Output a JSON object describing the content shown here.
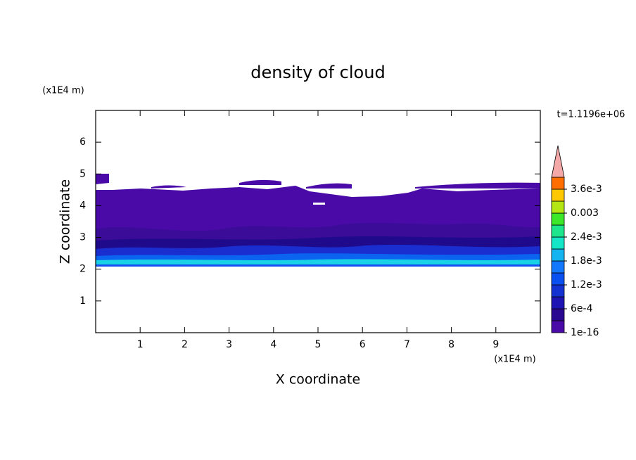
{
  "chart_data": {
    "type": "contour",
    "title": "density of cloud",
    "x_label": "X coordinate",
    "y_label": "Z coordinate",
    "x_unit": "(x1E4 m)",
    "y_unit": "(x1E4 m)",
    "time_label": "t=1.1196e+06",
    "xlim": [
      0,
      10
    ],
    "ylim": [
      0,
      7
    ],
    "xticks": [
      1,
      2,
      3,
      4,
      5,
      6,
      7,
      8,
      9
    ],
    "yticks": [
      1,
      2,
      3,
      4,
      5,
      6
    ],
    "colorbar": {
      "lim": [
        1e-16,
        0.0039
      ],
      "levels": [
        1e-16,
        0.0003,
        0.0006,
        0.0009,
        0.0012,
        0.0015,
        0.0018,
        0.0021,
        0.0024,
        0.0027,
        0.003,
        0.0033,
        0.0036
      ],
      "colors": [
        "#4a0aa8",
        "#2a0890",
        "#1e14b4",
        "#1432d2",
        "#0a50f0",
        "#1478ff",
        "#14b4f0",
        "#14e6c8",
        "#1ee68c",
        "#3ce628",
        "#b4e614",
        "#ffc800",
        "#ff6e00"
      ],
      "extend_color": "#f4a8a8",
      "ticks": [
        1e-16,
        {
          "value": 0.0006,
          "label": "6e-4"
        },
        {
          "value": 0.0012,
          "label": "1.2e-3"
        },
        {
          "value": 0.0018,
          "label": "1.8e-3"
        },
        {
          "value": 0.0024,
          "label": "2.4e-3"
        },
        0.003,
        {
          "value": 0.0036,
          "label": "3.6e-3"
        }
      ]
    }
  }
}
